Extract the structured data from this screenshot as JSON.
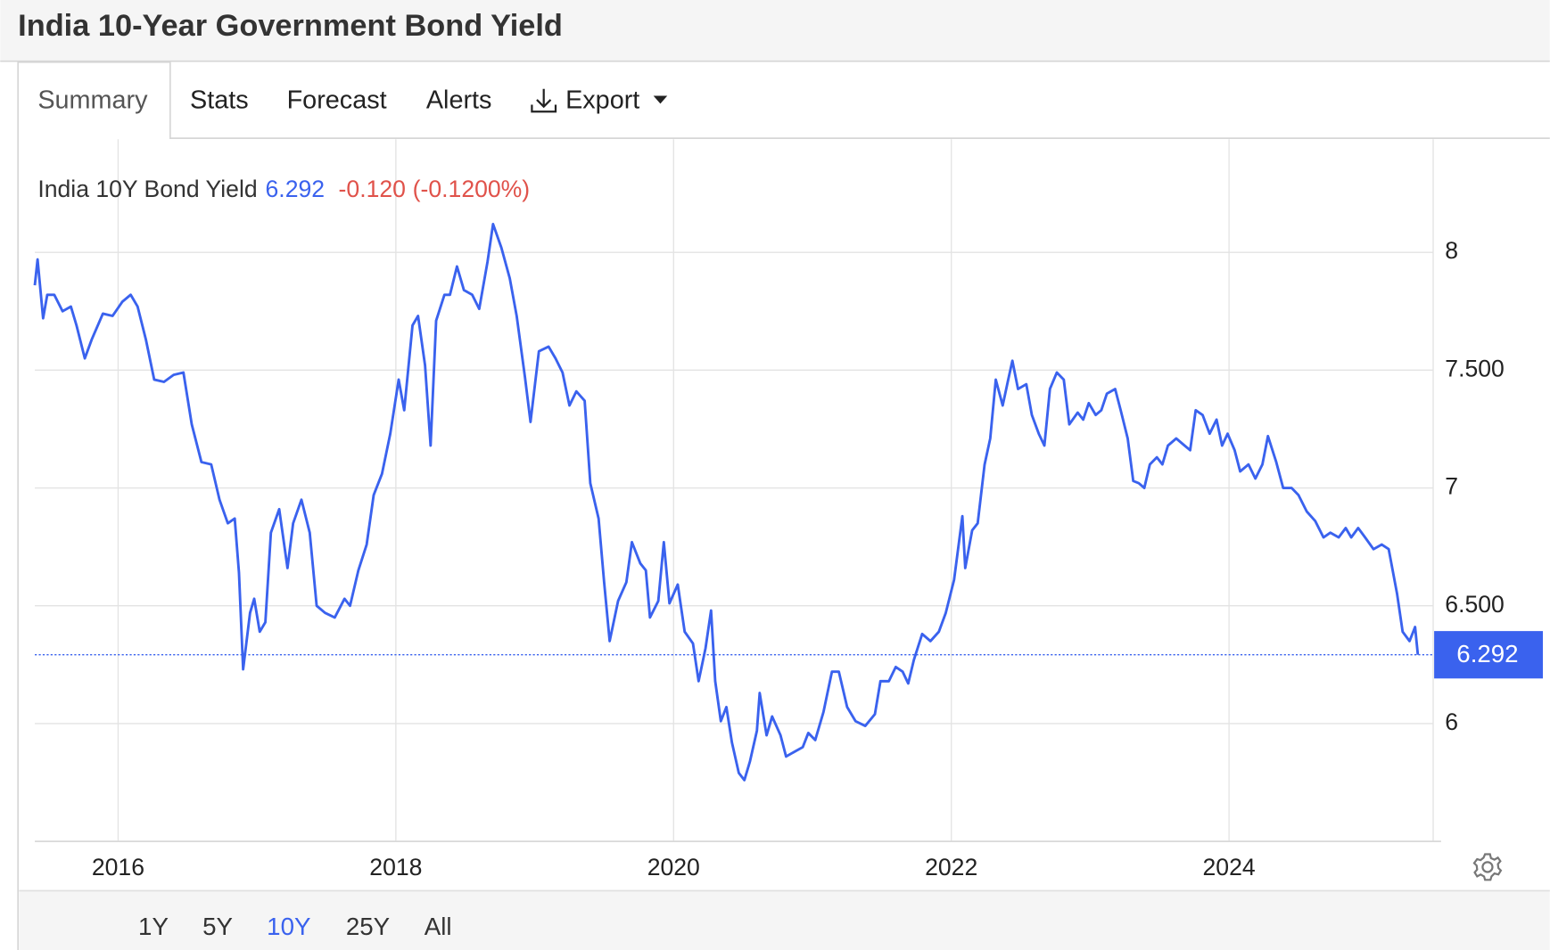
{
  "header": {
    "title": "India 10-Year Government Bond Yield"
  },
  "tabs": [
    "Summary",
    "Stats",
    "Forecast",
    "Alerts",
    "Export"
  ],
  "active_tab": "Summary",
  "chart_data": {
    "type": "line",
    "title": "India 10Y Bond Yield",
    "last_value": 6.292,
    "change": "-0.120",
    "change_percent": "(-0.1200%)",
    "x": [
      2015.4,
      2015.42,
      2015.46,
      2015.49,
      2015.54,
      2015.6,
      2015.66,
      2015.7,
      2015.76,
      2015.81,
      2015.89,
      2015.96,
      2016.03,
      2016.09,
      2016.14,
      2016.2,
      2016.26,
      2016.33,
      2016.4,
      2016.47,
      2016.53,
      2016.6,
      2016.67,
      2016.73,
      2016.79,
      2016.84,
      2016.87,
      2016.9,
      2016.95,
      2016.98,
      2017.02,
      2017.06,
      2017.1,
      2017.16,
      2017.22,
      2017.26,
      2017.32,
      2017.38,
      2017.43,
      2017.49,
      2017.56,
      2017.63,
      2017.67,
      2017.73,
      2017.79,
      2017.84,
      2017.9,
      2017.96,
      2018.02,
      2018.06,
      2018.12,
      2018.16,
      2018.21,
      2018.25,
      2018.29,
      2018.35,
      2018.39,
      2018.44,
      2018.49,
      2018.55,
      2018.6,
      2018.66,
      2018.7,
      2018.76,
      2018.82,
      2018.87,
      2018.93,
      2018.97,
      2019.03,
      2019.1,
      2019.15,
      2019.2,
      2019.25,
      2019.3,
      2019.36,
      2019.4,
      2019.46,
      2019.5,
      2019.54,
      2019.6,
      2019.66,
      2019.7,
      2019.76,
      2019.8,
      2019.83,
      2019.89,
      2019.93,
      2019.97,
      2020.03,
      2020.08,
      2020.14,
      2020.18,
      2020.23,
      2020.27,
      2020.3,
      2020.34,
      2020.38,
      2020.42,
      2020.47,
      2020.51,
      2020.55,
      2020.6,
      2020.62,
      2020.67,
      2020.71,
      2020.77,
      2020.81,
      2020.87,
      2020.93,
      2020.97,
      2021.02,
      2021.08,
      2021.14,
      2021.19,
      2021.25,
      2021.31,
      2021.38,
      2021.45,
      2021.49,
      2021.55,
      2021.6,
      2021.65,
      2021.69,
      2021.73,
      2021.79,
      2021.85,
      2021.91,
      2021.96,
      2022.02,
      2022.08,
      2022.1,
      2022.15,
      2022.19,
      2022.24,
      2022.28,
      2022.32,
      2022.37,
      2022.41,
      2022.44,
      2022.48,
      2022.54,
      2022.58,
      2022.63,
      2022.67,
      2022.71,
      2022.76,
      2022.81,
      2022.85,
      2022.91,
      2022.95,
      2022.99,
      2023.04,
      2023.08,
      2023.12,
      2023.18,
      2023.22,
      2023.27,
      2023.31,
      2023.35,
      2023.39,
      2023.43,
      2023.48,
      2023.52,
      2023.56,
      2023.62,
      2023.68,
      2023.72,
      2023.76,
      2023.81,
      2023.86,
      2023.91,
      2023.95,
      2023.99,
      2024.04,
      2024.08,
      2024.14,
      2024.19,
      2024.24,
      2024.28,
      2024.34,
      2024.39,
      2024.45,
      2024.5,
      2024.56,
      2024.62,
      2024.68,
      2024.73,
      2024.79,
      2024.84,
      2024.88,
      2024.93,
      2024.98,
      2025.04,
      2025.1,
      2025.15,
      2025.21,
      2025.25,
      2025.3,
      2025.34,
      2025.36
    ],
    "series": [
      {
        "name": "India 10Y Bond Yield",
        "color": "#3a62ee",
        "values": [
          7.86,
          7.97,
          7.72,
          7.82,
          7.82,
          7.75,
          7.77,
          7.69,
          7.55,
          7.63,
          7.74,
          7.73,
          7.79,
          7.82,
          7.77,
          7.63,
          7.46,
          7.45,
          7.48,
          7.49,
          7.27,
          7.11,
          7.1,
          6.95,
          6.85,
          6.87,
          6.64,
          6.23,
          6.47,
          6.53,
          6.39,
          6.43,
          6.81,
          6.91,
          6.66,
          6.85,
          6.95,
          6.81,
          6.5,
          6.47,
          6.45,
          6.53,
          6.5,
          6.65,
          6.76,
          6.97,
          7.06,
          7.23,
          7.46,
          7.33,
          7.69,
          7.73,
          7.52,
          7.18,
          7.71,
          7.82,
          7.82,
          7.94,
          7.84,
          7.82,
          7.76,
          7.96,
          8.12,
          8.02,
          7.89,
          7.73,
          7.47,
          7.28,
          7.58,
          7.6,
          7.55,
          7.49,
          7.35,
          7.41,
          7.37,
          7.02,
          6.87,
          6.6,
          6.35,
          6.52,
          6.6,
          6.77,
          6.68,
          6.65,
          6.45,
          6.52,
          6.77,
          6.51,
          6.59,
          6.39,
          6.34,
          6.18,
          6.32,
          6.48,
          6.18,
          6.01,
          6.07,
          5.92,
          5.79,
          5.76,
          5.84,
          5.97,
          6.13,
          5.95,
          6.03,
          5.95,
          5.86,
          5.88,
          5.9,
          5.96,
          5.93,
          6.05,
          6.22,
          6.22,
          6.07,
          6.01,
          5.99,
          6.04,
          6.18,
          6.18,
          6.24,
          6.22,
          6.17,
          6.27,
          6.38,
          6.35,
          6.39,
          6.47,
          6.61,
          6.88,
          6.66,
          6.82,
          6.85,
          7.1,
          7.21,
          7.46,
          7.35,
          7.46,
          7.54,
          7.42,
          7.44,
          7.31,
          7.23,
          7.18,
          7.42,
          7.49,
          7.46,
          7.27,
          7.32,
          7.29,
          7.36,
          7.31,
          7.33,
          7.4,
          7.42,
          7.33,
          7.21,
          7.03,
          7.02,
          7.0,
          7.1,
          7.13,
          7.1,
          7.18,
          7.21,
          7.18,
          7.16,
          7.33,
          7.31,
          7.23,
          7.29,
          7.18,
          7.23,
          7.16,
          7.07,
          7.1,
          7.04,
          7.1,
          7.22,
          7.11,
          7.0,
          7.0,
          6.97,
          6.9,
          6.86,
          6.79,
          6.81,
          6.79,
          6.83,
          6.79,
          6.83,
          6.79,
          6.74,
          6.76,
          6.74,
          6.55,
          6.39,
          6.35,
          6.41,
          6.292
        ]
      }
    ],
    "xlim": [
      2015.4,
      2025.47
    ],
    "xticks": [
      2016,
      2018,
      2020,
      2022,
      2024
    ],
    "ylim": [
      5.5,
      8.48
    ],
    "yticks": [
      6,
      {
        "value": 6.5,
        "label": "6.500"
      },
      7,
      {
        "value": 7.5,
        "label": "7.500"
      },
      8
    ],
    "grid": true,
    "range_buttons": [
      "1Y",
      "5Y",
      "10Y",
      "25Y",
      "All"
    ],
    "active_range": "10Y"
  }
}
